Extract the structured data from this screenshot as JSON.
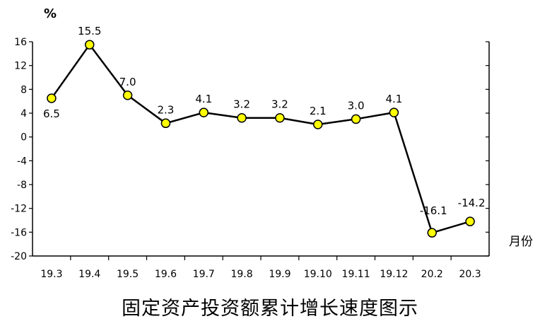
{
  "chart_data": {
    "type": "line",
    "title": "固定资产投资额累计增长速度图示",
    "ylabel": "%",
    "xlabel": "月份",
    "categories": [
      "19.3",
      "19.4",
      "19.5",
      "19.6",
      "19.7",
      "19.8",
      "19.9",
      "19.10",
      "19.11",
      "19.12",
      "20.2",
      "20.3"
    ],
    "series": [
      {
        "values": [
          6.5,
          15.5,
          7.0,
          2.3,
          4.1,
          3.2,
          3.2,
          2.1,
          3.0,
          4.1,
          -16.1,
          -14.2
        ],
        "data_labels": [
          "6.5",
          "15.5",
          "7.0",
          "2.3",
          "4.1",
          "3.2",
          "3.2",
          "2.1",
          "3.0",
          "4.1",
          "-16.1",
          "-14.2"
        ]
      }
    ],
    "yticks": [
      "16",
      "12",
      "8",
      "4",
      "0",
      "-4",
      "-8",
      "-12",
      "-16",
      "-20"
    ],
    "ylim": [
      -20,
      16
    ],
    "grid": false,
    "legend": "none",
    "colors": {
      "line": "#000000",
      "marker_fill": "#ffff00",
      "marker_stroke": "#000000",
      "axis": "#000000"
    }
  }
}
